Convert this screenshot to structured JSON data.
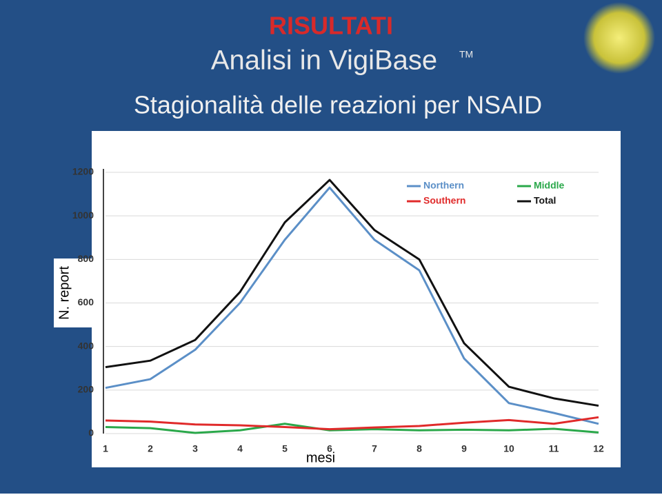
{
  "slide": {
    "heading": "RISULTATI",
    "subheading": "Analisi in VigiBase",
    "trademark": "TM"
  },
  "chart_data": {
    "type": "line",
    "title": "Stagionalità delle reazioni per NSAID",
    "x_label": "mesi",
    "y_label": "N. report",
    "categories": [
      "1",
      "2",
      "3",
      "4",
      "5",
      "6",
      "7",
      "8",
      "9",
      "10",
      "11",
      "12"
    ],
    "series": [
      {
        "name": "Northern",
        "color": "#5b8fc7",
        "values": [
          210,
          250,
          385,
          600,
          890,
          1130,
          890,
          750,
          345,
          140,
          95,
          45
        ]
      },
      {
        "name": "Middle",
        "color": "#2aa84a",
        "values": [
          30,
          25,
          3,
          15,
          45,
          15,
          20,
          15,
          18,
          15,
          22,
          5
        ]
      },
      {
        "name": "Southern",
        "color": "#e02a2a",
        "values": [
          60,
          55,
          42,
          38,
          30,
          20,
          28,
          35,
          50,
          62,
          45,
          75
        ]
      },
      {
        "name": "Total",
        "color": "#111111",
        "values": [
          305,
          335,
          430,
          650,
          970,
          1165,
          935,
          800,
          415,
          215,
          162,
          128
        ]
      }
    ],
    "ylim": [
      0,
      1200
    ],
    "yticks": [
      0,
      200,
      400,
      600,
      800,
      1000,
      1200
    ],
    "grid": true,
    "legend": "top-right"
  }
}
